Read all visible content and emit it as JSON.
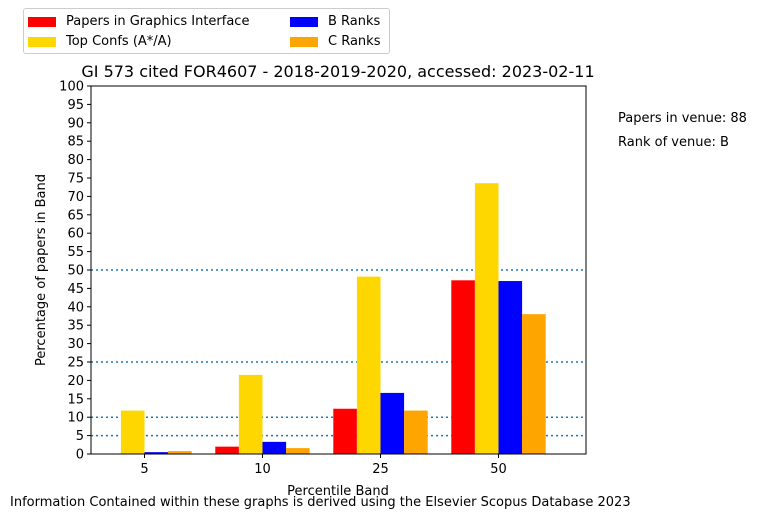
{
  "chart_data": {
    "type": "bar",
    "title": "GI 573 cited FOR4607 - 2018-2019-2020, accessed: 2023-02-11",
    "xlabel": "Percentile Band",
    "ylabel": "Percentage of papers in Band",
    "categories": [
      "5",
      "10",
      "25",
      "50"
    ],
    "ylim": [
      0,
      100
    ],
    "yticks": [
      "0",
      "5",
      "10",
      "15",
      "20",
      "25",
      "30",
      "35",
      "40",
      "45",
      "50",
      "55",
      "60",
      "65",
      "70",
      "75",
      "80",
      "85",
      "90",
      "95",
      "100"
    ],
    "reference_lines": [
      5,
      10,
      25,
      50
    ],
    "legend_position": "top-left (outside, above plot)",
    "series": [
      {
        "name": "Papers in Graphics Interface",
        "color": "#ff0000",
        "values": [
          0,
          2.0,
          12.3,
          47.2
        ]
      },
      {
        "name": "Top Confs (A*/A)",
        "color": "#ffd700",
        "values": [
          11.8,
          21.5,
          48.2,
          73.6
        ]
      },
      {
        "name": "B Ranks",
        "color": "#0000ff",
        "values": [
          0.5,
          3.3,
          16.6,
          47.0
        ]
      },
      {
        "name": "C Ranks",
        "color": "#ffa500",
        "values": [
          0.8,
          1.6,
          11.8,
          38.0
        ]
      }
    ]
  },
  "side_notes": {
    "papers_in_venue": "Papers in venue: 88",
    "rank_of_venue": "Rank of venue: B"
  },
  "footer": "Information Contained within these graphs is derived using the Elsevier Scopus Database 2023",
  "colors": {
    "reference_line": "#1f77b4"
  }
}
